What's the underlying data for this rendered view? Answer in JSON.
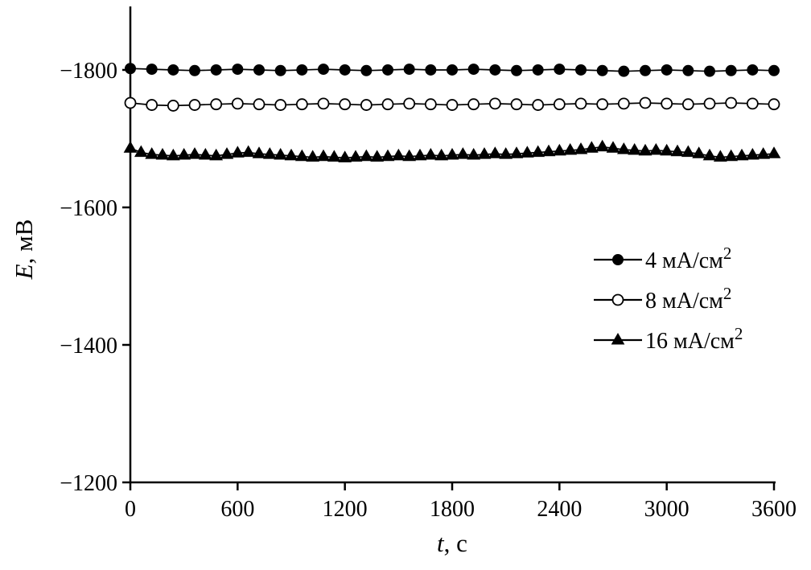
{
  "figure": {
    "background": "#ffffff",
    "axis_color": "#000000"
  },
  "chart_data": {
    "type": "line",
    "title": "",
    "xlabel_var": "t",
    "xlabel_rest": ", с",
    "ylabel_var": "E",
    "ylabel_rest": ", мВ",
    "xlim": [
      0,
      3600
    ],
    "ylim_top": -1890,
    "ylim_bottom": -1200,
    "y_inverted": true,
    "grid": false,
    "legend_position": "middle-right",
    "xticks": [
      0,
      600,
      1200,
      1800,
      2400,
      3000,
      3600
    ],
    "xtick_labels": [
      "0",
      "600",
      "1200",
      "1800",
      "2400",
      "3000",
      "3600"
    ],
    "yticks": [
      -1800,
      -1600,
      -1400,
      -1200
    ],
    "ytick_labels": [
      "−1800",
      "−1600",
      "−1400",
      "−1200"
    ],
    "series": [
      {
        "name": "4 mA/cm2",
        "label": "4 мА/см",
        "label_sup": "2",
        "marker": "filled-circle",
        "color": "#000000",
        "x": [
          0,
          120,
          240,
          360,
          480,
          600,
          720,
          840,
          960,
          1080,
          1200,
          1320,
          1440,
          1560,
          1680,
          1800,
          1920,
          2040,
          2160,
          2280,
          2400,
          2520,
          2640,
          2760,
          2880,
          3000,
          3120,
          3240,
          3360,
          3480,
          3600
        ],
        "values": [
          -1802,
          -1801,
          -1800,
          -1799,
          -1800,
          -1801,
          -1800,
          -1799,
          -1800,
          -1801,
          -1800,
          -1799,
          -1800,
          -1801,
          -1800,
          -1800,
          -1801,
          -1800,
          -1799,
          -1800,
          -1801,
          -1800,
          -1799,
          -1798,
          -1799,
          -1800,
          -1799,
          -1798,
          -1799,
          -1800,
          -1799
        ]
      },
      {
        "name": "8 mA/cm2",
        "label": "8 мА/см",
        "label_sup": "2",
        "marker": "open-circle",
        "color": "#000000",
        "x": [
          0,
          120,
          240,
          360,
          480,
          600,
          720,
          840,
          960,
          1080,
          1200,
          1320,
          1440,
          1560,
          1680,
          1800,
          1920,
          2040,
          2160,
          2280,
          2400,
          2520,
          2640,
          2760,
          2880,
          3000,
          3120,
          3240,
          3360,
          3480,
          3600
        ],
        "values": [
          -1752,
          -1749,
          -1748,
          -1749,
          -1750,
          -1751,
          -1750,
          -1749,
          -1750,
          -1751,
          -1750,
          -1749,
          -1750,
          -1751,
          -1750,
          -1749,
          -1750,
          -1751,
          -1750,
          -1749,
          -1750,
          -1751,
          -1750,
          -1751,
          -1752,
          -1751,
          -1750,
          -1751,
          -1752,
          -1751,
          -1750
        ]
      },
      {
        "name": "16 mA/cm2",
        "label": "16 мА/см",
        "label_sup": "2",
        "marker": "filled-triangle",
        "color": "#000000",
        "x": [
          0,
          60,
          120,
          180,
          240,
          300,
          360,
          420,
          480,
          540,
          600,
          660,
          720,
          780,
          840,
          900,
          960,
          1020,
          1080,
          1140,
          1200,
          1260,
          1320,
          1380,
          1440,
          1500,
          1560,
          1620,
          1680,
          1740,
          1800,
          1860,
          1920,
          1980,
          2040,
          2100,
          2160,
          2220,
          2280,
          2340,
          2400,
          2460,
          2520,
          2580,
          2640,
          2700,
          2760,
          2820,
          2880,
          2940,
          3000,
          3060,
          3120,
          3180,
          3240,
          3300,
          3360,
          3420,
          3480,
          3540,
          3600
        ],
        "values": [
          -1686,
          -1680,
          -1677,
          -1676,
          -1675,
          -1676,
          -1677,
          -1676,
          -1675,
          -1677,
          -1679,
          -1680,
          -1678,
          -1677,
          -1676,
          -1675,
          -1674,
          -1673,
          -1674,
          -1673,
          -1672,
          -1673,
          -1674,
          -1673,
          -1674,
          -1675,
          -1674,
          -1675,
          -1676,
          -1675,
          -1676,
          -1677,
          -1676,
          -1677,
          -1678,
          -1677,
          -1678,
          -1679,
          -1680,
          -1681,
          -1682,
          -1683,
          -1684,
          -1686,
          -1688,
          -1686,
          -1684,
          -1683,
          -1682,
          -1683,
          -1682,
          -1681,
          -1680,
          -1678,
          -1675,
          -1673,
          -1674,
          -1675,
          -1676,
          -1677,
          -1678
        ]
      }
    ]
  }
}
